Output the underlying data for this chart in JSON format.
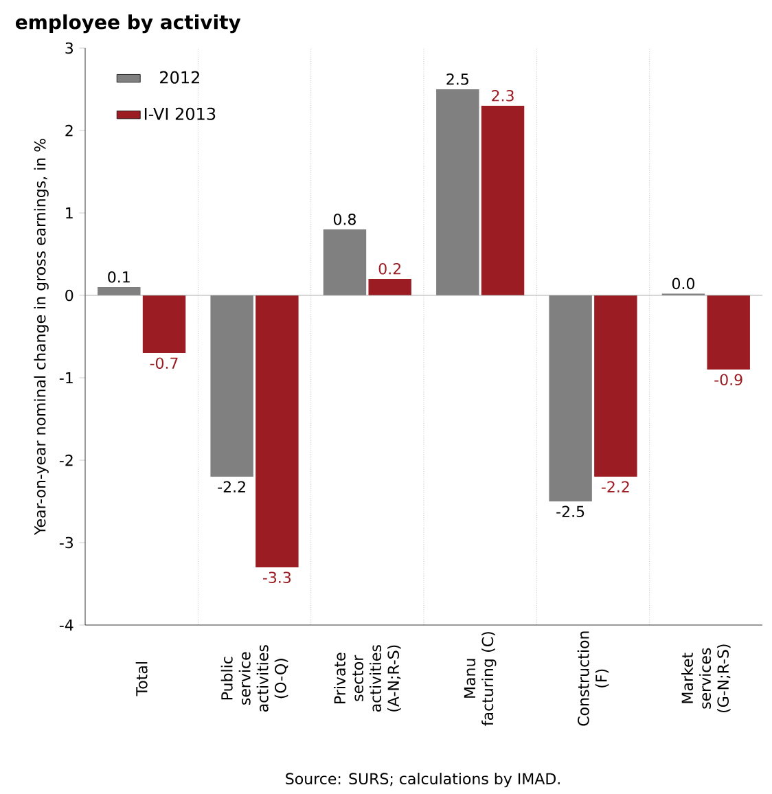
{
  "chart_data": {
    "type": "bar",
    "title": "employee by activity",
    "ylabel": "Year-on-year nominal change in gross earnings, in %",
    "categories": [
      "Total",
      "Public service activities (O-Q)",
      "Private sector activities (A-N;R-S)",
      "Manu facturing (C)",
      "Construction (F)",
      "Market services (G-N;R-S)"
    ],
    "series": [
      {
        "name": "2012",
        "color": "#808080",
        "values": [
          0.1,
          -2.2,
          0.8,
          2.5,
          -2.5,
          0.02
        ],
        "value_labels": [
          "0.1",
          "-2.2",
          "0.8",
          "2.5",
          "-2.5",
          "0.0"
        ]
      },
      {
        "name": "I-VI 2013",
        "color": "#9b1c22",
        "values": [
          -0.7,
          -3.3,
          0.2,
          2.3,
          -2.2,
          -0.9
        ],
        "value_labels": [
          "-0.7",
          "-3.3",
          "0.2",
          "2.3",
          "-2.2",
          "-0.9"
        ]
      }
    ],
    "ylim": [
      -4,
      3
    ],
    "yticks": [
      -4,
      -3,
      -2,
      -1,
      0,
      1,
      2,
      3
    ],
    "grid": "x",
    "legend": "top left",
    "annotations": [
      "Source: SURS; calculations by IMAD."
    ]
  }
}
